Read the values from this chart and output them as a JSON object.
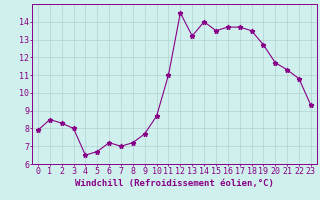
{
  "x": [
    0,
    1,
    2,
    3,
    4,
    5,
    6,
    7,
    8,
    9,
    10,
    11,
    12,
    13,
    14,
    15,
    16,
    17,
    18,
    19,
    20,
    21,
    22,
    23
  ],
  "y": [
    7.9,
    8.5,
    8.3,
    8.0,
    6.5,
    6.7,
    7.2,
    7.0,
    7.2,
    7.7,
    8.7,
    11.0,
    14.5,
    13.2,
    14.0,
    13.5,
    13.7,
    13.7,
    13.5,
    12.7,
    11.7,
    11.3,
    10.8,
    9.3
  ],
  "line_color": "#880088",
  "marker": "*",
  "markersize": 3.5,
  "linewidth": 0.8,
  "bg_color": "#cff0ec",
  "grid_color": "#aacccc",
  "xlabel": "Windchill (Refroidissement éolien,°C)",
  "xlabel_fontsize": 6.5,
  "tick_fontsize": 6.0,
  "ylim": [
    6,
    15
  ],
  "xlim": [
    -0.5,
    23.5
  ],
  "yticks": [
    6,
    7,
    8,
    9,
    10,
    11,
    12,
    13,
    14
  ],
  "xticks": [
    0,
    1,
    2,
    3,
    4,
    5,
    6,
    7,
    8,
    9,
    10,
    11,
    12,
    13,
    14,
    15,
    16,
    17,
    18,
    19,
    20,
    21,
    22,
    23
  ]
}
